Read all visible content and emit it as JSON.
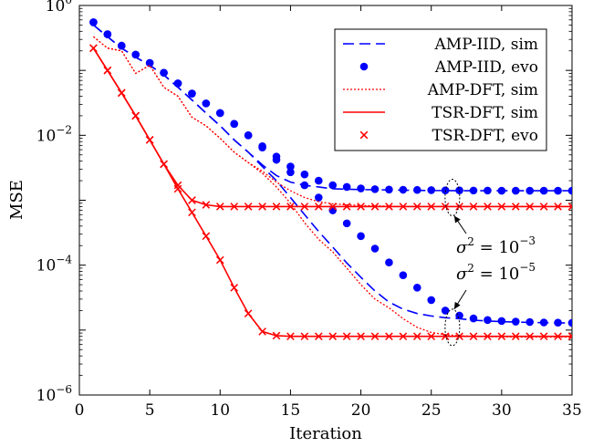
{
  "chart_data": {
    "type": "line",
    "xlabel": "Iteration",
    "ylabel": "MSE",
    "xlim": [
      0,
      35
    ],
    "ylim": [
      1e-06,
      1
    ],
    "yscale": "log",
    "xticks": [
      "0",
      "5",
      "10",
      "15",
      "20",
      "25",
      "30",
      "35"
    ],
    "yticks": [
      {
        "base": "10",
        "exp": "0"
      },
      {
        "base": "10",
        "exp": "−2"
      },
      {
        "base": "10",
        "exp": "−4"
      },
      {
        "base": "10",
        "exp": "−6"
      }
    ],
    "grid": false,
    "legend_position": "top-right",
    "x": [
      1,
      2,
      3,
      4,
      5,
      6,
      7,
      8,
      9,
      10,
      11,
      12,
      13,
      14,
      15,
      16,
      17,
      18,
      19,
      20,
      21,
      22,
      23,
      24,
      25,
      26,
      27,
      28,
      29,
      30,
      31,
      32,
      33,
      34,
      35
    ],
    "series": [
      {
        "name": "AMP-IID, sim",
        "style": "dashed",
        "color": "#0000ff",
        "marker": "none",
        "noise": "1e-3",
        "values": [
          0.5,
          0.33,
          0.22,
          0.16,
          0.12,
          0.085,
          0.055,
          0.035,
          0.022,
          0.014,
          0.0085,
          0.0055,
          0.0035,
          0.0024,
          0.0019,
          0.0017,
          0.0016,
          0.0015,
          0.00148,
          0.00146,
          0.00145,
          0.00144,
          0.00143,
          0.00142,
          0.00141,
          0.00141,
          0.0014,
          0.0014,
          0.0014,
          0.0014,
          0.0014,
          0.0014,
          0.0014,
          0.0014,
          0.0014
        ]
      },
      {
        "name": "AMP-IID, sim",
        "style": "dashed",
        "color": "#0000ff",
        "marker": "none",
        "noise": "1e-5",
        "values": [
          0.5,
          0.33,
          0.22,
          0.16,
          0.12,
          0.085,
          0.055,
          0.035,
          0.022,
          0.014,
          0.0085,
          0.0055,
          0.0033,
          0.002,
          0.0011,
          0.0006,
          0.00033,
          0.00019,
          0.000108,
          6.5e-05,
          4e-05,
          2.7e-05,
          2.1e-05,
          1.8e-05,
          1.65e-05,
          1.55e-05,
          1.5e-05,
          1.42e-05,
          1.38e-05,
          1.35e-05,
          1.33e-05,
          1.31e-05,
          1.3e-05,
          1.29e-05,
          1.28e-05
        ]
      },
      {
        "name": "AMP-IID, evo",
        "style": "none",
        "color": "#0000ff",
        "marker": "dot",
        "noise": "1e-3",
        "values": [
          0.55,
          0.36,
          0.24,
          0.175,
          0.13,
          0.092,
          0.063,
          0.044,
          0.031,
          0.022,
          0.015,
          0.01,
          0.0068,
          0.0047,
          0.0033,
          0.0025,
          0.002,
          0.0017,
          0.0016,
          0.00152,
          0.00148,
          0.00146,
          0.00145,
          0.00144,
          0.00143,
          0.00142,
          0.00142,
          0.00141,
          0.00141,
          0.0014,
          0.0014,
          0.0014,
          0.0014,
          0.0014,
          0.0014
        ]
      },
      {
        "name": "AMP-IID, evo",
        "style": "none",
        "color": "#0000ff",
        "marker": "dot",
        "noise": "1e-5",
        "values": [
          0.55,
          0.36,
          0.24,
          0.175,
          0.13,
          0.092,
          0.063,
          0.044,
          0.031,
          0.022,
          0.015,
          0.01,
          0.0065,
          0.0042,
          0.0027,
          0.0017,
          0.0011,
          0.0007,
          0.00044,
          0.00028,
          0.00018,
          0.00011,
          7e-05,
          4.5e-05,
          2.9e-05,
          2e-05,
          1.67e-05,
          1.51e-05,
          1.43e-05,
          1.38e-05,
          1.35e-05,
          1.33e-05,
          1.31e-05,
          1.3e-05,
          1.29e-05
        ]
      },
      {
        "name": "AMP-DFT, sim",
        "style": "dotted",
        "color": "#ff0000",
        "marker": "none",
        "noise": "1e-3",
        "values": [
          0.33,
          0.22,
          0.2,
          0.09,
          0.12,
          0.055,
          0.04,
          0.019,
          0.014,
          0.009,
          0.0055,
          0.0038,
          0.0028,
          0.0019,
          0.0014,
          0.0011,
          0.00095,
          0.00088,
          0.00085,
          0.00083,
          0.00082,
          0.00081,
          0.0008,
          0.0008,
          0.0008,
          0.0008,
          0.0008,
          0.0008,
          0.0008,
          0.0008,
          0.0008,
          0.0008,
          0.0008,
          0.0008,
          0.0008
        ]
      },
      {
        "name": "AMP-DFT, sim",
        "style": "dotted",
        "color": "#ff0000",
        "marker": "none",
        "noise": "1e-5",
        "values": [
          0.33,
          0.22,
          0.2,
          0.09,
          0.12,
          0.055,
          0.04,
          0.019,
          0.014,
          0.009,
          0.0055,
          0.0038,
          0.0026,
          0.0016,
          0.0009,
          0.00045,
          0.00025,
          0.00016,
          9e-05,
          5e-05,
          3e-05,
          2.2e-05,
          1.5e-05,
          1.1e-05,
          9.2e-06,
          8.5e-06,
          8.2e-06,
          8e-06,
          7.9e-06,
          7.9e-06,
          7.8e-06,
          7.8e-06,
          7.8e-06,
          7.8e-06,
          7.8e-06
        ]
      },
      {
        "name": "TSR-DFT, sim",
        "style": "solid",
        "color": "#ff0000",
        "marker": "none",
        "noise": "1e-3",
        "values": [
          0.22,
          0.1,
          0.045,
          0.02,
          0.0085,
          0.0036,
          0.0017,
          0.001,
          0.00085,
          0.0008,
          0.0008,
          0.0008,
          0.0008,
          0.0008,
          0.0008,
          0.0008,
          0.0008,
          0.0008,
          0.0008,
          0.0008,
          0.0008,
          0.0008,
          0.0008,
          0.0008,
          0.0008,
          0.0008,
          0.0008,
          0.0008,
          0.0008,
          0.0008,
          0.0008,
          0.0008,
          0.0008,
          0.0008,
          0.0008
        ]
      },
      {
        "name": "TSR-DFT, sim",
        "style": "solid",
        "color": "#ff0000",
        "marker": "none",
        "noise": "1e-5",
        "values": [
          0.22,
          0.1,
          0.045,
          0.02,
          0.0085,
          0.0036,
          0.0015,
          0.00065,
          0.00028,
          0.00012,
          4.5e-05,
          1.8e-05,
          9.5e-06,
          8.2e-06,
          8e-06,
          8e-06,
          8e-06,
          8e-06,
          8e-06,
          8e-06,
          8e-06,
          8e-06,
          8e-06,
          8e-06,
          8e-06,
          8e-06,
          8e-06,
          8e-06,
          8e-06,
          8e-06,
          8e-06,
          8e-06,
          8e-06,
          8e-06,
          8e-06
        ]
      },
      {
        "name": "TSR-DFT, evo",
        "style": "none",
        "color": "#ff0000",
        "marker": "x",
        "noise": "1e-3",
        "values": [
          0.22,
          0.1,
          0.045,
          0.02,
          0.0085,
          0.0036,
          0.0017,
          0.001,
          0.00085,
          0.0008,
          0.0008,
          0.0008,
          0.0008,
          0.0008,
          0.0008,
          0.0008,
          0.0008,
          0.0008,
          0.0008,
          0.0008,
          0.0008,
          0.0008,
          0.0008,
          0.0008,
          0.0008,
          0.0008,
          0.0008,
          0.0008,
          0.0008,
          0.0008,
          0.0008,
          0.0008,
          0.0008,
          0.0008,
          0.0008
        ]
      },
      {
        "name": "TSR-DFT, evo",
        "style": "none",
        "color": "#ff0000",
        "marker": "x",
        "noise": "1e-5",
        "values": [
          0.22,
          0.1,
          0.045,
          0.02,
          0.0085,
          0.0036,
          0.0015,
          0.00065,
          0.00028,
          0.00012,
          4.5e-05,
          1.8e-05,
          9.5e-06,
          8.2e-06,
          8e-06,
          8e-06,
          8e-06,
          8e-06,
          8e-06,
          8e-06,
          8e-06,
          8e-06,
          8e-06,
          8e-06,
          8e-06,
          8e-06,
          8e-06,
          8e-06,
          8e-06,
          8e-06,
          8e-06,
          8e-06,
          8e-06,
          8e-06,
          8e-06
        ]
      }
    ],
    "legend": [
      {
        "label": "AMP-IID, sim",
        "style": "dashed",
        "color": "#0000ff",
        "marker": "none"
      },
      {
        "label": "AMP-IID, evo",
        "style": "none",
        "color": "#0000ff",
        "marker": "dot"
      },
      {
        "label": "AMP-DFT, sim",
        "style": "dotted",
        "color": "#ff0000",
        "marker": "none"
      },
      {
        "label": "TSR-DFT, sim",
        "style": "solid",
        "color": "#ff0000",
        "marker": "none"
      },
      {
        "label": "TSR-DFT, evo",
        "style": "none",
        "color": "#ff0000",
        "marker": "x"
      }
    ],
    "annotations": [
      {
        "sigma": "σ",
        "power": "2",
        "eq": " = 10",
        "exp": "−3",
        "points_to": {
          "x": 26.5,
          "y": 0.0014
        }
      },
      {
        "sigma": "σ",
        "power": "2",
        "eq": " = 10",
        "exp": "−5",
        "points_to": {
          "x": 26.5,
          "y": 1.5e-05
        }
      }
    ]
  }
}
